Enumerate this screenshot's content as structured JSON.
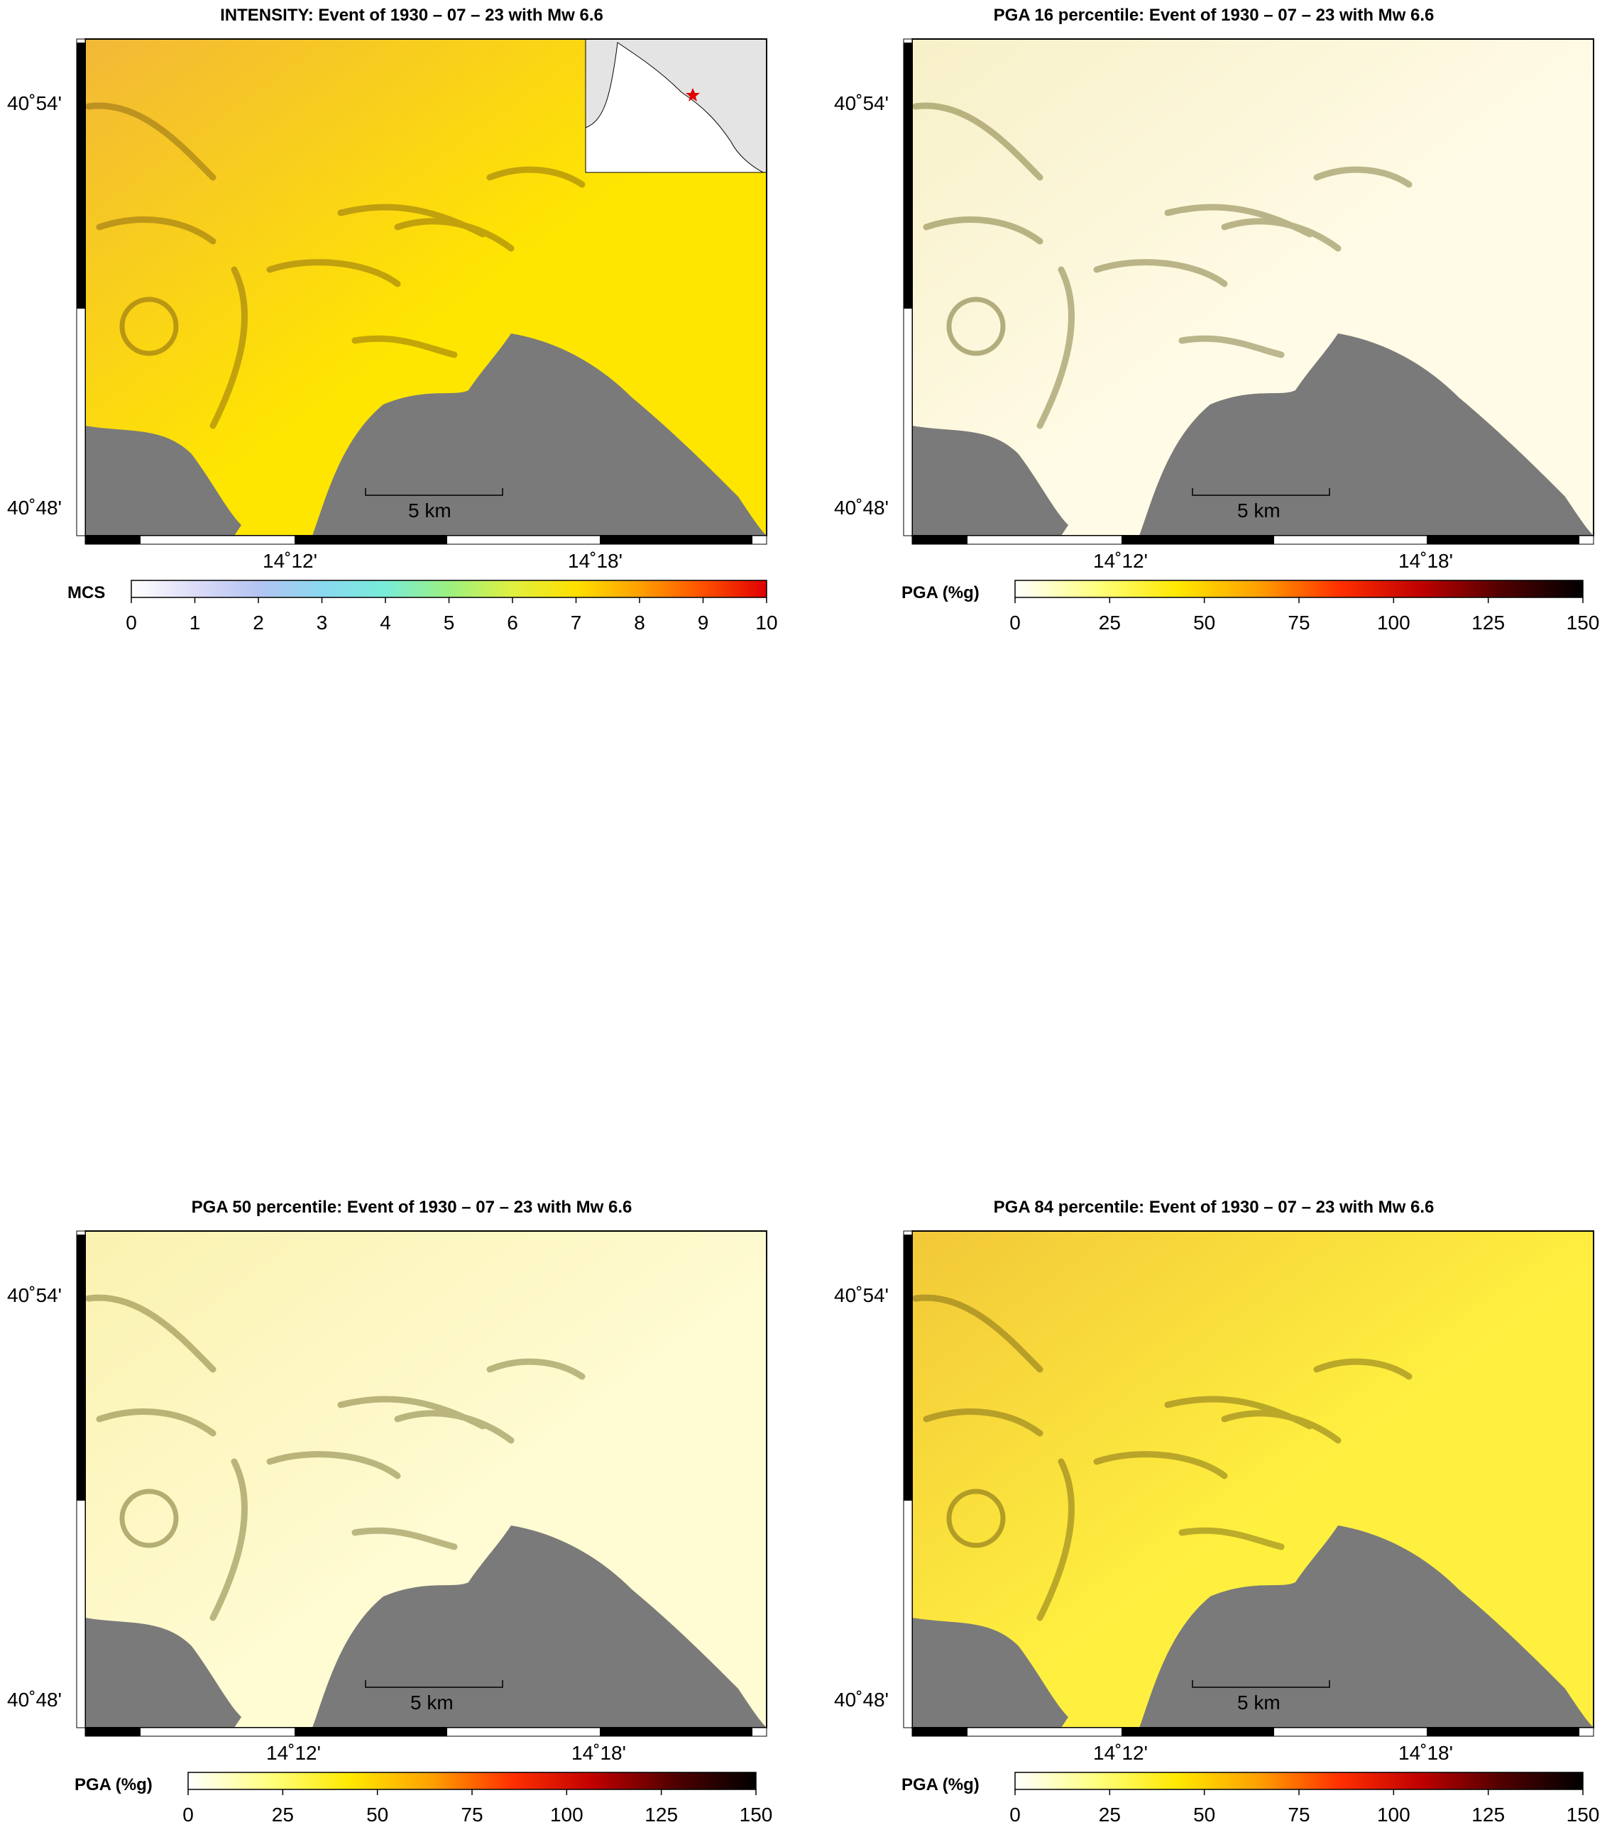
{
  "colors": {
    "sea": "#7a7a7a",
    "inset_land": "#e4e4e4",
    "epicenter": "#e00000",
    "frame": "#000000"
  },
  "panels": [
    {
      "id": "intensity",
      "title": "INTENSITY: Event of 1930 – 07 – 23 with Mw 6.6",
      "lat_labels": [
        "40˚54'",
        "40˚48'"
      ],
      "lon_labels": [
        "14˚12'",
        "14˚18'"
      ],
      "scale_bar": "5 km",
      "has_inset": true,
      "colorbar": {
        "label": "MCS",
        "ticks": [
          "0",
          "1",
          "2",
          "3",
          "4",
          "5",
          "6",
          "7",
          "8",
          "9",
          "10"
        ],
        "stops": [
          "#ffffff",
          "#dcdcf8",
          "#b4c4f2",
          "#8ad8f0",
          "#78ecd8",
          "#9cf080",
          "#e0f040",
          "#ffe000",
          "#ffa000",
          "#ff5000",
          "#e00000"
        ]
      },
      "map": {
        "base": "#ffe600",
        "highlight": "#f2b838",
        "shade": "#7a5a10"
      }
    },
    {
      "id": "pga16",
      "title": "PGA 16 percentile: Event of 1930 – 07 – 23 with Mw 6.6",
      "lat_labels": [
        "40˚54'",
        "40˚48'"
      ],
      "lon_labels": [
        "14˚12'",
        "14˚18'"
      ],
      "scale_bar": "5 km",
      "has_inset": false,
      "colorbar": {
        "label": "PGA (%g)",
        "ticks": [
          "0",
          "25",
          "50",
          "75",
          "100",
          "125",
          "150"
        ],
        "stops": [
          "#ffffff",
          "#ffff80",
          "#ffe800",
          "#ffa000",
          "#ff3000",
          "#c00000",
          "#500000",
          "#000000"
        ]
      },
      "map": {
        "base": "#fffbe6",
        "highlight": "#f7f0c8",
        "shade": "#6a6420"
      }
    },
    {
      "id": "pga50",
      "title": "PGA 50 percentile: Event of 1930 – 07 – 23 with Mw 6.6",
      "lat_labels": [
        "40˚54'",
        "40˚48'"
      ],
      "lon_labels": [
        "14˚12'",
        "14˚18'"
      ],
      "scale_bar": "5 km",
      "has_inset": false,
      "colorbar": {
        "label": "PGA (%g)",
        "ticks": [
          "0",
          "25",
          "50",
          "75",
          "100",
          "125",
          "150"
        ],
        "stops": [
          "#ffffff",
          "#ffff80",
          "#ffe800",
          "#ffa000",
          "#ff3000",
          "#c00000",
          "#500000",
          "#000000"
        ]
      },
      "map": {
        "base": "#fffbd2",
        "highlight": "#faf2b0",
        "shade": "#6a6420"
      }
    },
    {
      "id": "pga84",
      "title": "PGA 84 percentile: Event of 1930 – 07 – 23 with Mw 6.6",
      "lat_labels": [
        "40˚54'",
        "40˚48'"
      ],
      "lon_labels": [
        "14˚12'",
        "14˚18'"
      ],
      "scale_bar": "5 km",
      "has_inset": false,
      "colorbar": {
        "label": "PGA (%g)",
        "ticks": [
          "0",
          "25",
          "50",
          "75",
          "100",
          "125",
          "150"
        ],
        "stops": [
          "#ffffff",
          "#ffff80",
          "#ffe800",
          "#ffa000",
          "#ff3000",
          "#c00000",
          "#500000",
          "#000000"
        ]
      },
      "map": {
        "base": "#fff040",
        "highlight": "#f2c838",
        "shade": "#6a5a10"
      }
    }
  ]
}
